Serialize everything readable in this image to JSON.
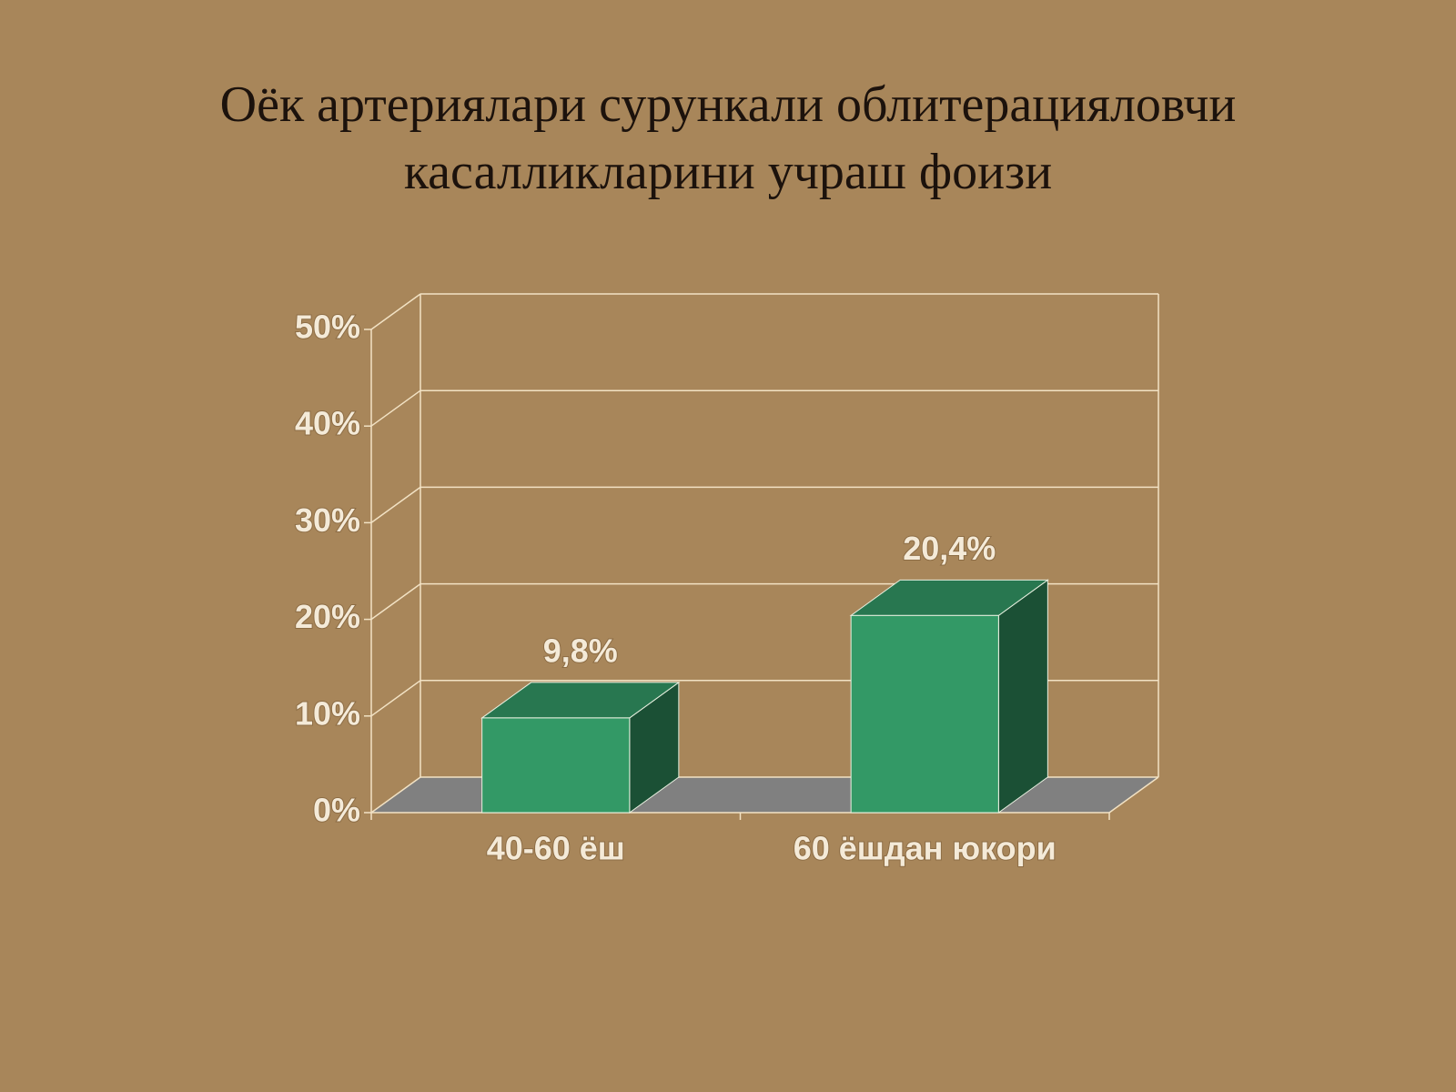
{
  "chart_data": {
    "type": "bar3d",
    "title": "Оёк артериялари сурункали облитерацияловчи касалликларини учраш фоизи",
    "categories": [
      "40-60 ёш",
      "60 ёшдан юкори"
    ],
    "values": [
      9.8,
      20.4
    ],
    "value_labels": [
      "9,8%",
      "20,4%"
    ],
    "color": "#339966",
    "ylim": [
      0,
      50
    ],
    "yticks": [
      {
        "value": 0,
        "label": "0%"
      },
      {
        "value": 10,
        "label": "10%"
      },
      {
        "value": 20,
        "label": "20%"
      },
      {
        "value": 30,
        "label": "30%"
      },
      {
        "value": 40,
        "label": "40%"
      },
      {
        "value": 50,
        "label": "50%"
      }
    ],
    "grid": true
  }
}
